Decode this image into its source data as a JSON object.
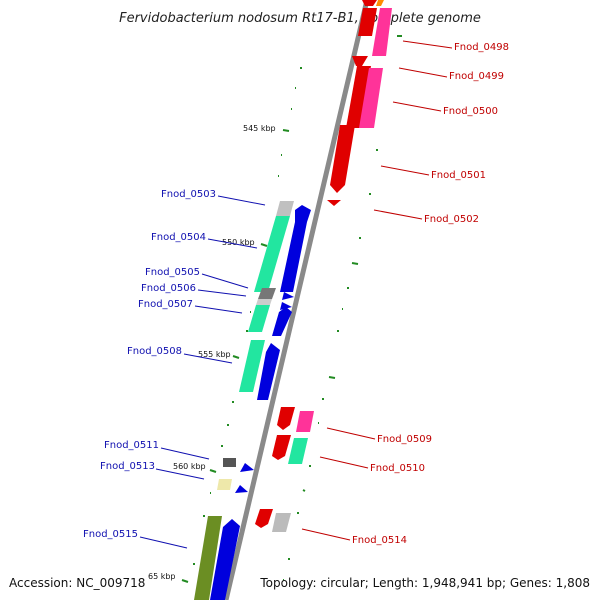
{
  "title": "Fervidobacterium nodosum Rt17-B1, complete genome",
  "footer": {
    "accession": "Accession: NC_009718",
    "topology": "Topology: circular; Length: 1,948,941 bp; Genes: 1,808"
  },
  "ticks": [
    {
      "label": "545 kbp"
    },
    {
      "label": "550 kbp"
    },
    {
      "label": "555 kbp"
    },
    {
      "label": "560 kbp"
    },
    {
      "label": "65 kbp"
    }
  ],
  "genes_left": [
    {
      "label": "Fnod_0503"
    },
    {
      "label": "Fnod_0504"
    },
    {
      "label": "Fnod_0505"
    },
    {
      "label": "Fnod_0506"
    },
    {
      "label": "Fnod_0507"
    },
    {
      "label": "Fnod_0508"
    },
    {
      "label": "Fnod_0511"
    },
    {
      "label": "Fnod_0513"
    },
    {
      "label": "Fnod_0515"
    }
  ],
  "genes_right": [
    {
      "label": "Fnod_0498"
    },
    {
      "label": "Fnod_0499"
    },
    {
      "label": "Fnod_0500"
    },
    {
      "label": "Fnod_0501"
    },
    {
      "label": "Fnod_0502"
    },
    {
      "label": "Fnod_0509"
    },
    {
      "label": "Fnod_0510"
    },
    {
      "label": "Fnod_0514"
    }
  ],
  "colors": {
    "backbone": "#8a8a8a",
    "forward_strand": "#e00000",
    "forward_strand_alt": "#ff3399",
    "reverse_strand": "#0000dd",
    "cds_green": "#22e6a0",
    "olive": "#6b8e23",
    "grey_feature": "#aaaaaa",
    "yellow_feature": "#eee8aa",
    "tick": "#228b22",
    "left_label": "#1010b0",
    "right_label": "#c00000"
  }
}
